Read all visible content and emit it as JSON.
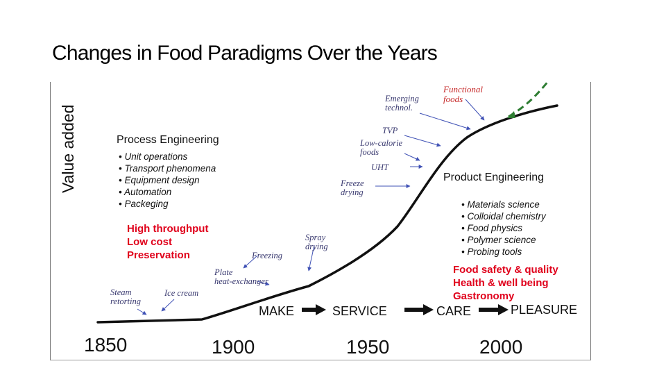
{
  "slide": {
    "title": "Changes in Food Paradigms Over the Years"
  },
  "figure": {
    "y_axis_label": "Value added",
    "process_engineering": {
      "heading": "Process Engineering",
      "items": [
        "Unit operations",
        "Transport phenomena",
        "Equipment design",
        "Automation",
        "Packeging"
      ],
      "goals": [
        "High throughput",
        "Low cost",
        "Preservation"
      ]
    },
    "product_engineering": {
      "heading": "Product Engineering",
      "items": [
        "Materials science",
        "Colloidal chemistry",
        "Food physics",
        "Polymer science",
        "Probing tools"
      ],
      "goals": [
        "Food safety & quality",
        "Health & well being",
        "Gastronomy"
      ]
    },
    "annotations": {
      "steam_retorting": "Steam\nretorting",
      "ice_cream": "Ice cream",
      "plate_heat_exchanger": "Plate\nheat-exchanger",
      "freezing": "Freezing",
      "spray_drying": "Spray\ndrying",
      "freeze_drying": "Freeze\ndrying",
      "uht": "UHT",
      "low_calorie_foods": "Low-calorie\nfoods",
      "tvp": "TVP",
      "emerging_technol": "Emerging\ntechnol.",
      "functional_foods": "Functional\nfoods"
    },
    "stages": [
      "MAKE",
      "SERVICE",
      "CARE",
      "PLEASURE"
    ],
    "years": [
      "1850",
      "1900",
      "1950",
      "2000"
    ],
    "colors": {
      "curve": "#111111",
      "dashed_extension": "#2e7d32",
      "goal_text": "#e0001b",
      "annotation_arrow": "#3f51b5"
    }
  }
}
